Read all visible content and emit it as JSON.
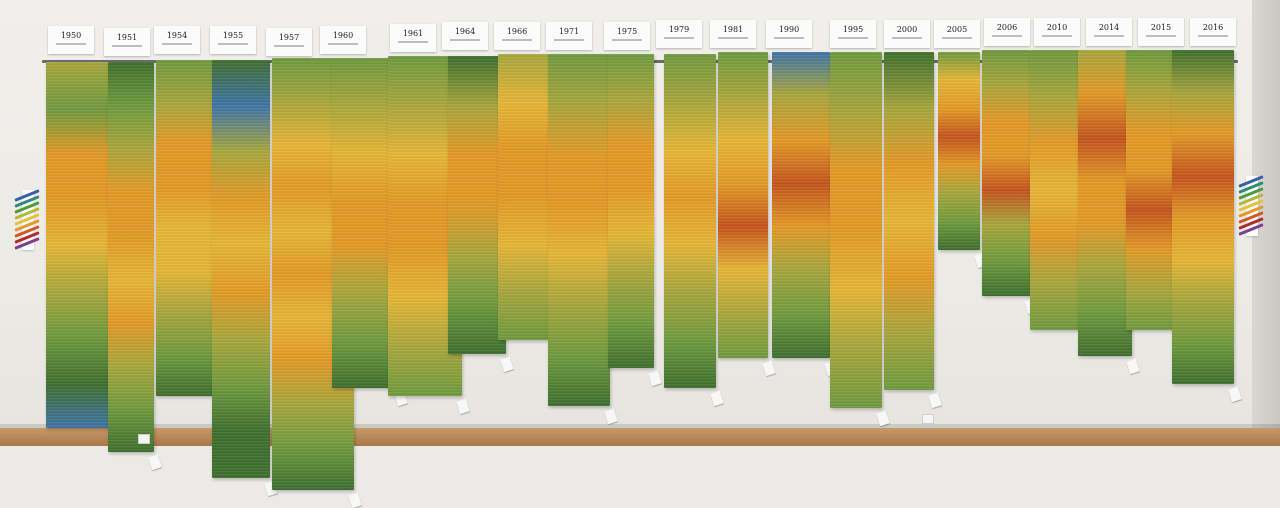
{
  "exhibit": {
    "years": [
      "1950",
      "1951",
      "1954",
      "1955",
      "1957",
      "1960",
      "1961",
      "1964",
      "1966",
      "1971",
      "1975",
      "1979",
      "1981",
      "1990",
      "1995",
      "2000",
      "2005",
      "2006",
      "2010",
      "2014",
      "2015",
      "2016"
    ]
  },
  "palette": {
    "wall": "#ecebe6",
    "floor": "#b8895a",
    "blue": "#3f74a6",
    "dark_green": "#3e6f2e",
    "green": "#6f9a3d",
    "olive": "#a8a73c",
    "yellow": "#e6b636",
    "orange": "#e39a26",
    "red": "#c5541c"
  },
  "key_colors": [
    "#3a5da8",
    "#2f8a7a",
    "#4f9a3a",
    "#b3b83a",
    "#e6c23a",
    "#e3982a",
    "#d05a24",
    "#b02c2a",
    "#7a3f8f"
  ]
}
